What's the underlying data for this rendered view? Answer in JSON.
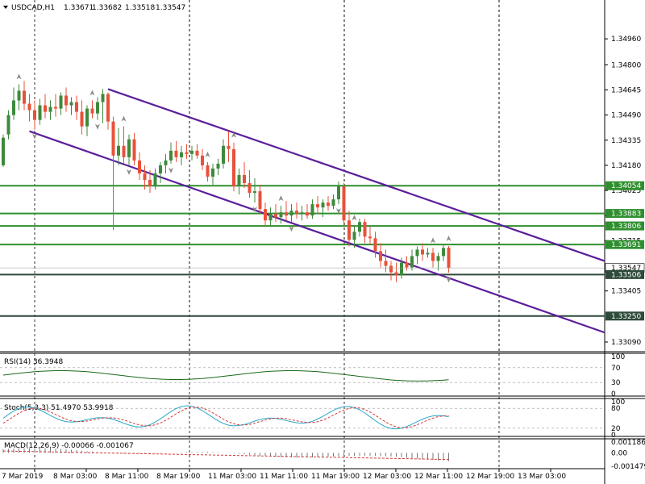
{
  "header": {
    "symbol": "USDCAD,H1",
    "open": "1.33671",
    "high": "1.33682",
    "low": "1.33518",
    "close": "1.33547"
  },
  "price_axis": {
    "ticks": [
      {
        "label": "1.34960",
        "value": 1.3496
      },
      {
        "label": "1.34800",
        "value": 1.348
      },
      {
        "label": "1.34645",
        "value": 1.34645
      },
      {
        "label": "1.34490",
        "value": 1.3449
      },
      {
        "label": "1.34335",
        "value": 1.34335
      },
      {
        "label": "1.34180",
        "value": 1.3418
      },
      {
        "label": "1.34025",
        "value": 1.34025
      },
      {
        "label": "1.33870",
        "value": 1.3387
      },
      {
        "label": "1.33715",
        "value": 1.33715
      },
      {
        "label": "1.33405",
        "value": 1.33405
      },
      {
        "label": "1.33090",
        "value": 1.3309
      }
    ],
    "level_labels": [
      {
        "label": "1.34054",
        "value": 1.34054
      },
      {
        "label": "1.33883",
        "value": 1.33883
      },
      {
        "label": "1.33806",
        "value": 1.33806
      },
      {
        "label": "1.33691",
        "value": 1.33691
      },
      {
        "label": "1.33547",
        "value": 1.33547
      },
      {
        "label": "1.33506",
        "value": 1.33506
      },
      {
        "label": "1.33250",
        "value": 1.3325
      }
    ]
  },
  "time_axis": {
    "labels": [
      "7 Mar 2019",
      "8 Mar 03:00",
      "8 Mar 11:00",
      "8 Mar 19:00",
      "11 Mar 03:00",
      "11 Mar 11:00",
      "11 Mar 19:00",
      "12 Mar 03:00",
      "12 Mar 11:00",
      "12 Mar 19:00",
      "13 Mar 03:00"
    ]
  },
  "indicators": {
    "rsi": {
      "title": "RSI(14) 36.3948",
      "scale": [
        "100",
        "70",
        "30",
        "0"
      ]
    },
    "stoch": {
      "title": "Stoch(5,3,3) 51.4970 53.9918",
      "scale": [
        "100",
        "80",
        "20",
        "0"
      ]
    },
    "macd": {
      "title": "MACD(12,26,9) -0.00066 -0.001067",
      "scale": [
        "0.001186",
        "0.00",
        "-0.001479"
      ]
    }
  },
  "colors": {
    "bull_candle": "#3d8a3d",
    "bear_candle": "#e8513a",
    "level_line": "#2f8f2f",
    "channel_line": "#5b1f9b",
    "rsi_line": "#1a6a1a",
    "stoch_main": "#2aa9c8",
    "stoch_signal": "#d43a3a"
  },
  "chart_data": {
    "type": "candlestick",
    "title": "USDCAD,H1",
    "ylim": [
      1.3305,
      1.3512
    ],
    "candles": [
      {
        "o": 1.3418,
        "h": 1.3437,
        "l": 1.3417,
        "c": 1.3435
      },
      {
        "o": 1.3437,
        "h": 1.3452,
        "l": 1.3434,
        "c": 1.3449
      },
      {
        "o": 1.3449,
        "h": 1.3466,
        "l": 1.3446,
        "c": 1.3458
      },
      {
        "o": 1.3458,
        "h": 1.3468,
        "l": 1.3452,
        "c": 1.3464
      },
      {
        "o": 1.3464,
        "h": 1.347,
        "l": 1.3452,
        "c": 1.3456
      },
      {
        "o": 1.3456,
        "h": 1.3462,
        "l": 1.3445,
        "c": 1.3452
      },
      {
        "o": 1.3452,
        "h": 1.3458,
        "l": 1.344,
        "c": 1.3446
      },
      {
        "o": 1.3446,
        "h": 1.3459,
        "l": 1.3443,
        "c": 1.3455
      },
      {
        "o": 1.3455,
        "h": 1.3462,
        "l": 1.3447,
        "c": 1.3451
      },
      {
        "o": 1.3451,
        "h": 1.3458,
        "l": 1.3446,
        "c": 1.3454
      },
      {
        "o": 1.3454,
        "h": 1.3462,
        "l": 1.3448,
        "c": 1.3453
      },
      {
        "o": 1.3453,
        "h": 1.3463,
        "l": 1.3449,
        "c": 1.3461
      },
      {
        "o": 1.3461,
        "h": 1.3466,
        "l": 1.3451,
        "c": 1.3455
      },
      {
        "o": 1.3455,
        "h": 1.346,
        "l": 1.3449,
        "c": 1.3457
      },
      {
        "o": 1.3457,
        "h": 1.3461,
        "l": 1.3446,
        "c": 1.3451
      },
      {
        "o": 1.3451,
        "h": 1.3458,
        "l": 1.3437,
        "c": 1.3442
      },
      {
        "o": 1.3442,
        "h": 1.3455,
        "l": 1.3436,
        "c": 1.3453
      },
      {
        "o": 1.3453,
        "h": 1.3458,
        "l": 1.3447,
        "c": 1.345
      },
      {
        "o": 1.345,
        "h": 1.346,
        "l": 1.3446,
        "c": 1.3457
      },
      {
        "o": 1.3457,
        "h": 1.3465,
        "l": 1.3444,
        "c": 1.3462
      },
      {
        "o": 1.3462,
        "h": 1.3463,
        "l": 1.344,
        "c": 1.3445
      },
      {
        "o": 1.3445,
        "h": 1.3448,
        "l": 1.3378,
        "c": 1.3424
      },
      {
        "o": 1.3424,
        "h": 1.3441,
        "l": 1.3418,
        "c": 1.343
      },
      {
        "o": 1.343,
        "h": 1.3442,
        "l": 1.3419,
        "c": 1.3423
      },
      {
        "o": 1.3423,
        "h": 1.3437,
        "l": 1.3418,
        "c": 1.3434
      },
      {
        "o": 1.3434,
        "h": 1.3438,
        "l": 1.3418,
        "c": 1.3421
      },
      {
        "o": 1.3421,
        "h": 1.3426,
        "l": 1.3409,
        "c": 1.3413
      },
      {
        "o": 1.3413,
        "h": 1.3418,
        "l": 1.3403,
        "c": 1.3409
      },
      {
        "o": 1.3409,
        "h": 1.3415,
        "l": 1.3401,
        "c": 1.3405
      },
      {
        "o": 1.3405,
        "h": 1.3416,
        "l": 1.3403,
        "c": 1.3413
      },
      {
        "o": 1.3413,
        "h": 1.342,
        "l": 1.3407,
        "c": 1.3418
      },
      {
        "o": 1.3418,
        "h": 1.3425,
        "l": 1.3413,
        "c": 1.3421
      },
      {
        "o": 1.3421,
        "h": 1.3432,
        "l": 1.3419,
        "c": 1.3427
      },
      {
        "o": 1.3427,
        "h": 1.3433,
        "l": 1.342,
        "c": 1.3423
      },
      {
        "o": 1.3423,
        "h": 1.343,
        "l": 1.3418,
        "c": 1.3426
      },
      {
        "o": 1.3426,
        "h": 1.3431,
        "l": 1.3422,
        "c": 1.3425
      },
      {
        "o": 1.3425,
        "h": 1.343,
        "l": 1.3421,
        "c": 1.3427
      },
      {
        "o": 1.3427,
        "h": 1.3431,
        "l": 1.3422,
        "c": 1.3424
      },
      {
        "o": 1.3424,
        "h": 1.3428,
        "l": 1.3415,
        "c": 1.3418
      },
      {
        "o": 1.3418,
        "h": 1.342,
        "l": 1.3408,
        "c": 1.3411
      },
      {
        "o": 1.3411,
        "h": 1.3419,
        "l": 1.3406,
        "c": 1.3416
      },
      {
        "o": 1.3416,
        "h": 1.3422,
        "l": 1.3412,
        "c": 1.3419
      },
      {
        "o": 1.3419,
        "h": 1.3434,
        "l": 1.3416,
        "c": 1.343
      },
      {
        "o": 1.343,
        "h": 1.3439,
        "l": 1.342,
        "c": 1.3428
      },
      {
        "o": 1.3428,
        "h": 1.3432,
        "l": 1.3402,
        "c": 1.3405
      },
      {
        "o": 1.3405,
        "h": 1.3416,
        "l": 1.34,
        "c": 1.3412
      },
      {
        "o": 1.3412,
        "h": 1.342,
        "l": 1.3404,
        "c": 1.3407
      },
      {
        "o": 1.3407,
        "h": 1.3415,
        "l": 1.3398,
        "c": 1.3401
      },
      {
        "o": 1.3401,
        "h": 1.341,
        "l": 1.3395,
        "c": 1.3402
      },
      {
        "o": 1.3402,
        "h": 1.3406,
        "l": 1.3388,
        "c": 1.3391
      },
      {
        "o": 1.3391,
        "h": 1.3395,
        "l": 1.3381,
        "c": 1.3384
      },
      {
        "o": 1.3384,
        "h": 1.3392,
        "l": 1.338,
        "c": 1.3388
      },
      {
        "o": 1.3388,
        "h": 1.3394,
        "l": 1.3383,
        "c": 1.3386
      },
      {
        "o": 1.3386,
        "h": 1.3393,
        "l": 1.3382,
        "c": 1.3389
      },
      {
        "o": 1.3389,
        "h": 1.3396,
        "l": 1.3384,
        "c": 1.3387
      },
      {
        "o": 1.3387,
        "h": 1.3394,
        "l": 1.3383,
        "c": 1.339
      },
      {
        "o": 1.339,
        "h": 1.3395,
        "l": 1.3385,
        "c": 1.3388
      },
      {
        "o": 1.3388,
        "h": 1.3393,
        "l": 1.3384,
        "c": 1.3389
      },
      {
        "o": 1.3389,
        "h": 1.3394,
        "l": 1.3385,
        "c": 1.3387
      },
      {
        "o": 1.3387,
        "h": 1.3397,
        "l": 1.3385,
        "c": 1.3394
      },
      {
        "o": 1.3394,
        "h": 1.3399,
        "l": 1.3388,
        "c": 1.3392
      },
      {
        "o": 1.3392,
        "h": 1.3397,
        "l": 1.3386,
        "c": 1.3395
      },
      {
        "o": 1.3395,
        "h": 1.3399,
        "l": 1.339,
        "c": 1.3393
      },
      {
        "o": 1.3393,
        "h": 1.34,
        "l": 1.3391,
        "c": 1.3397
      },
      {
        "o": 1.3397,
        "h": 1.3408,
        "l": 1.3394,
        "c": 1.3405
      },
      {
        "o": 1.3405,
        "h": 1.3407,
        "l": 1.3381,
        "c": 1.3384
      },
      {
        "o": 1.3384,
        "h": 1.339,
        "l": 1.3368,
        "c": 1.3372
      },
      {
        "o": 1.3372,
        "h": 1.3381,
        "l": 1.3367,
        "c": 1.3377
      },
      {
        "o": 1.3377,
        "h": 1.3385,
        "l": 1.3374,
        "c": 1.3383
      },
      {
        "o": 1.3383,
        "h": 1.3385,
        "l": 1.337,
        "c": 1.3374
      },
      {
        "o": 1.3374,
        "h": 1.338,
        "l": 1.3369,
        "c": 1.3373
      },
      {
        "o": 1.3373,
        "h": 1.3377,
        "l": 1.3361,
        "c": 1.3365
      },
      {
        "o": 1.3365,
        "h": 1.337,
        "l": 1.3355,
        "c": 1.3359
      },
      {
        "o": 1.3359,
        "h": 1.3366,
        "l": 1.3352,
        "c": 1.3356
      },
      {
        "o": 1.3356,
        "h": 1.3359,
        "l": 1.3347,
        "c": 1.3352
      },
      {
        "o": 1.3352,
        "h": 1.3358,
        "l": 1.3346,
        "c": 1.335
      },
      {
        "o": 1.335,
        "h": 1.3361,
        "l": 1.3348,
        "c": 1.3358
      },
      {
        "o": 1.3358,
        "h": 1.3362,
        "l": 1.3353,
        "c": 1.3355
      },
      {
        "o": 1.3355,
        "h": 1.3366,
        "l": 1.3353,
        "c": 1.3362
      },
      {
        "o": 1.3362,
        "h": 1.3368,
        "l": 1.3357,
        "c": 1.3366
      },
      {
        "o": 1.3366,
        "h": 1.337,
        "l": 1.3359,
        "c": 1.3363
      },
      {
        "o": 1.3363,
        "h": 1.3367,
        "l": 1.3361,
        "c": 1.3364
      },
      {
        "o": 1.3364,
        "h": 1.3367,
        "l": 1.3355,
        "c": 1.3359
      },
      {
        "o": 1.3359,
        "h": 1.3364,
        "l": 1.3353,
        "c": 1.3362
      },
      {
        "o": 1.3362,
        "h": 1.3369,
        "l": 1.3359,
        "c": 1.3367
      },
      {
        "o": 1.33671,
        "h": 1.33682,
        "l": 1.33518,
        "c": 1.33547
      }
    ],
    "horizontal_levels": [
      1.34054,
      1.33883,
      1.33806,
      1.33691,
      1.33506,
      1.3325
    ],
    "channel": {
      "upper": [
        {
          "bar": 20,
          "price": 1.3465
        },
        {
          "bar": 104,
          "price": 1.3371
        }
      ],
      "lower": [
        {
          "bar": 5,
          "price": 1.3439
        },
        {
          "bar": 104,
          "price": 1.3327
        }
      ]
    }
  }
}
